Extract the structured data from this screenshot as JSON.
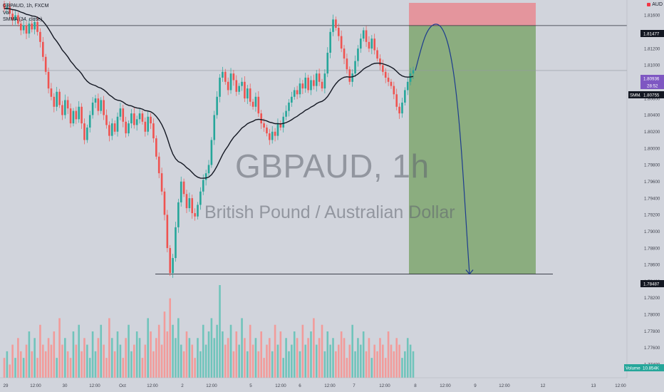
{
  "legend": {
    "symbol_line": "GBPAUD, 1h, FXCM",
    "vol_label": "Vol",
    "smma_label": "SMMA (34, close)"
  },
  "watermark": {
    "title": "GBPAUD, 1h",
    "subtitle": "British Pound / Australian Dollar"
  },
  "currency_button": {
    "label": "AUD"
  },
  "price_axis": {
    "labels": [
      "1.81600",
      "1.81400",
      "1.81200",
      "1.81000",
      "1.80800",
      "1.80600",
      "1.80400",
      "1.80200",
      "1.80000",
      "1.79800",
      "1.79600",
      "1.79400",
      "1.79200",
      "1.79000",
      "1.78800",
      "1.78600",
      "1.78400",
      "1.78200",
      "1.78000",
      "1.77800",
      "1.77600",
      "1.77400"
    ]
  },
  "price_tags": {
    "resistance": "1.81477",
    "current_price": "1.80936",
    "countdown": "28:52",
    "smma_tag_name": "SMMA",
    "smma_value": "1.80755",
    "target": "1.78487",
    "volume_name": "Volume",
    "volume_value": "10.854K"
  },
  "time_axis": {
    "labels": [
      "29",
      "12:00",
      "30",
      "12:00",
      "Oct",
      "12:00",
      "2",
      "12:00",
      "5",
      "12:00",
      "6",
      "12:00",
      "7",
      "12:00",
      "8",
      "12:00",
      "9",
      "12:00",
      "12",
      "13",
      "12:00"
    ]
  },
  "colors": {
    "up": "#26a69a",
    "down": "#ef5350",
    "vol_up": "#70c4bb",
    "vol_down": "#f29b9a",
    "smma": "#131722",
    "profit_zone": "#7fa66e",
    "loss_zone": "#e88a92",
    "arrow": "#1d3c8f"
  },
  "chart_data": {
    "type": "candlestick",
    "symbol": "GBPAUD",
    "timeframe": "1h",
    "price_range": [
      1.7736,
      1.8175
    ],
    "resistance_level": 1.81477,
    "support_level": 1.78487,
    "current_price": 1.80936,
    "smma_value": 1.80755,
    "trade_setup": {
      "direction": "short",
      "entry": 1.80936,
      "stop": 1.8175,
      "target": 1.78487
    },
    "closes": [
      1.8168,
      1.817,
      1.8162,
      1.8154,
      1.816,
      1.815,
      1.8142,
      1.8148,
      1.8138,
      1.815,
      1.8143,
      1.8152,
      1.814,
      1.8128,
      1.811,
      1.8092,
      1.8072,
      1.8062,
      1.805,
      1.8068,
      1.8052,
      1.804,
      1.8058,
      1.8048,
      1.803,
      1.8045,
      1.8035,
      1.805,
      1.803,
      1.801,
      1.8025,
      1.804,
      1.8055,
      1.806,
      1.8045,
      1.8058,
      1.804,
      1.8028,
      1.8015,
      1.803,
      1.802,
      1.8038,
      1.8048,
      1.8032,
      1.8018,
      1.803,
      1.8042,
      1.8028,
      1.8035,
      1.8042,
      1.8032,
      1.802,
      1.8038,
      1.803,
      1.8012,
      1.799,
      1.797,
      1.7948,
      1.792,
      1.788,
      1.785,
      1.7868,
      1.7905,
      1.7935,
      1.796,
      1.7945,
      1.7928,
      1.794,
      1.7922,
      1.7918,
      1.7932,
      1.7948,
      1.7962,
      1.797,
      1.798,
      1.801,
      1.804,
      1.8062,
      1.8085,
      1.8092,
      1.808,
      1.807,
      1.809,
      1.8082,
      1.8068,
      1.8075,
      1.808,
      1.806,
      1.8072,
      1.8056,
      1.805,
      1.8062,
      1.8042,
      1.803,
      1.8025,
      1.8018,
      1.801,
      1.802,
      1.8015,
      1.803,
      1.8025,
      1.8038,
      1.8045,
      1.8055,
      1.8062,
      1.807,
      1.8065,
      1.8078,
      1.8072,
      1.8085,
      1.807,
      1.8082,
      1.8075,
      1.809,
      1.808,
      1.8072,
      1.809,
      1.8115,
      1.814,
      1.8155,
      1.8145,
      1.8135,
      1.812,
      1.8108,
      1.8095,
      1.808,
      1.809,
      1.8105,
      1.812,
      1.8132,
      1.8142,
      1.8128,
      1.812,
      1.8132,
      1.8118,
      1.8108,
      1.81,
      1.8092,
      1.8085,
      1.808,
      1.8075,
      1.8065,
      1.805,
      1.8042,
      1.8055,
      1.807,
      1.808,
      1.809,
      1.8094
    ],
    "volumes": [
      3,
      4,
      2,
      5,
      3,
      6,
      4,
      3,
      5,
      7,
      4,
      6,
      3,
      8,
      5,
      4,
      6,
      5,
      7,
      3,
      9,
      5,
      6,
      4,
      3,
      7,
      5,
      8,
      4,
      6,
      5,
      3,
      7,
      4,
      6,
      8,
      5,
      3,
      9,
      6,
      4,
      7,
      5,
      3,
      6,
      8,
      4,
      5,
      7,
      6,
      3,
      5,
      9,
      7,
      4,
      6,
      8,
      5,
      10,
      7,
      12,
      8,
      6,
      9,
      5,
      4,
      7,
      6,
      5,
      3,
      6,
      4,
      8,
      5,
      7,
      9,
      6,
      8,
      14,
      7,
      5,
      6,
      8,
      4,
      7,
      5,
      9,
      6,
      4,
      8,
      5,
      6,
      4,
      7,
      3,
      5,
      6,
      4,
      8,
      5,
      7,
      3,
      6,
      4,
      5,
      7,
      6,
      4,
      8,
      5,
      6,
      7,
      9,
      5,
      6,
      8,
      4,
      7,
      5,
      6,
      4,
      5,
      7,
      6,
      3,
      5,
      8,
      4,
      6,
      5,
      7,
      4,
      6,
      3,
      5,
      4,
      6,
      5,
      3,
      7,
      5,
      4,
      6,
      5,
      3,
      4,
      6,
      5,
      4
    ]
  }
}
